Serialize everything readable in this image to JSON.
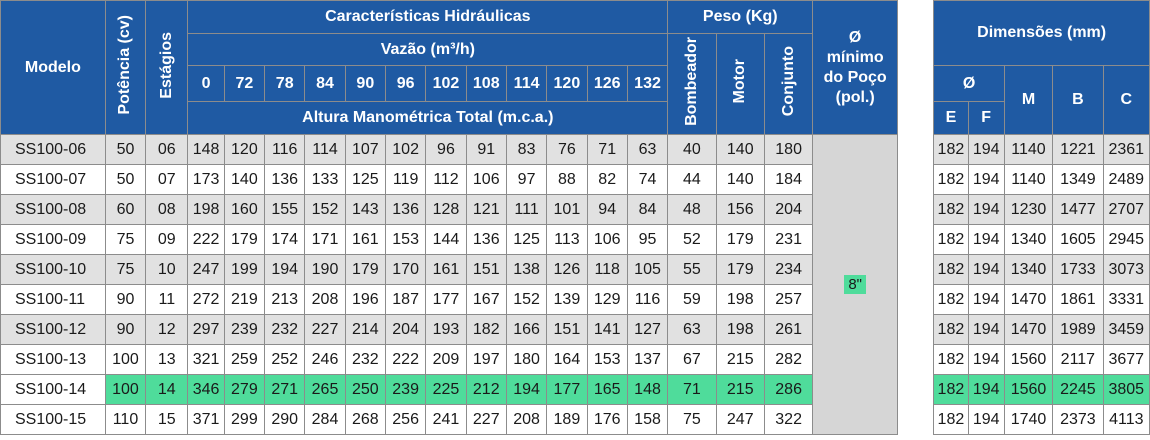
{
  "headers": {
    "model": "Modelo",
    "power": "Potência (cv)",
    "stages": "Estágios",
    "hydraulic": "Características Hidráulicas",
    "flow": "Vazão (m³/h)",
    "flow_values": [
      "0",
      "72",
      "78",
      "84",
      "90",
      "96",
      "102",
      "108",
      "114",
      "120",
      "126",
      "132"
    ],
    "head": "Altura Manométrica Total (m.c.a.)",
    "weight": "Peso (Kg)",
    "weight_cols": [
      "Bombeador",
      "Motor",
      "Conjunto"
    ],
    "well": "Ø mínimo do Poço (pol.)",
    "dims": "Dimensões (mm)",
    "dia": "Ø",
    "dim_cols": [
      "E",
      "F",
      "M",
      "B",
      "C"
    ]
  },
  "well_value": "8\"",
  "highlight_color": "#4fdc9b",
  "header_color": "#1f5aa3",
  "rows": [
    {
      "model": "SS100-06",
      "power": "50",
      "stages": "06",
      "heads": [
        "148",
        "120",
        "116",
        "114",
        "107",
        "102",
        "96",
        "91",
        "83",
        "76",
        "71",
        "63"
      ],
      "weights": [
        "40",
        "140",
        "180"
      ],
      "dims": [
        "182",
        "194",
        "1140",
        "1221",
        "2361"
      ]
    },
    {
      "model": "SS100-07",
      "power": "50",
      "stages": "07",
      "heads": [
        "173",
        "140",
        "136",
        "133",
        "125",
        "119",
        "112",
        "106",
        "97",
        "88",
        "82",
        "74"
      ],
      "weights": [
        "44",
        "140",
        "184"
      ],
      "dims": [
        "182",
        "194",
        "1140",
        "1349",
        "2489"
      ]
    },
    {
      "model": "SS100-08",
      "power": "60",
      "stages": "08",
      "heads": [
        "198",
        "160",
        "155",
        "152",
        "143",
        "136",
        "128",
        "121",
        "111",
        "101",
        "94",
        "84"
      ],
      "weights": [
        "48",
        "156",
        "204"
      ],
      "dims": [
        "182",
        "194",
        "1230",
        "1477",
        "2707"
      ]
    },
    {
      "model": "SS100-09",
      "power": "75",
      "stages": "09",
      "heads": [
        "222",
        "179",
        "174",
        "171",
        "161",
        "153",
        "144",
        "136",
        "125",
        "113",
        "106",
        "95"
      ],
      "weights": [
        "52",
        "179",
        "231"
      ],
      "dims": [
        "182",
        "194",
        "1340",
        "1605",
        "2945"
      ]
    },
    {
      "model": "SS100-10",
      "power": "75",
      "stages": "10",
      "heads": [
        "247",
        "199",
        "194",
        "190",
        "179",
        "170",
        "161",
        "151",
        "138",
        "126",
        "118",
        "105"
      ],
      "weights": [
        "55",
        "179",
        "234"
      ],
      "dims": [
        "182",
        "194",
        "1340",
        "1733",
        "3073"
      ]
    },
    {
      "model": "SS100-11",
      "power": "90",
      "stages": "11",
      "heads": [
        "272",
        "219",
        "213",
        "208",
        "196",
        "187",
        "177",
        "167",
        "152",
        "139",
        "129",
        "116"
      ],
      "weights": [
        "59",
        "198",
        "257"
      ],
      "dims": [
        "182",
        "194",
        "1470",
        "1861",
        "3331"
      ]
    },
    {
      "model": "SS100-12",
      "power": "90",
      "stages": "12",
      "heads": [
        "297",
        "239",
        "232",
        "227",
        "214",
        "204",
        "193",
        "182",
        "166",
        "151",
        "141",
        "127"
      ],
      "weights": [
        "63",
        "198",
        "261"
      ],
      "dims": [
        "182",
        "194",
        "1470",
        "1989",
        "3459"
      ]
    },
    {
      "model": "SS100-13",
      "power": "100",
      "stages": "13",
      "heads": [
        "321",
        "259",
        "252",
        "246",
        "232",
        "222",
        "209",
        "197",
        "180",
        "164",
        "153",
        "137"
      ],
      "weights": [
        "67",
        "215",
        "282"
      ],
      "dims": [
        "182",
        "194",
        "1560",
        "2117",
        "3677"
      ]
    },
    {
      "model": "SS100-14",
      "power": "100",
      "stages": "14",
      "heads": [
        "346",
        "279",
        "271",
        "265",
        "250",
        "239",
        "225",
        "212",
        "194",
        "177",
        "165",
        "148"
      ],
      "weights": [
        "71",
        "215",
        "286"
      ],
      "dims": [
        "182",
        "194",
        "1560",
        "2245",
        "3805"
      ],
      "highlight": true
    },
    {
      "model": "SS100-15",
      "power": "110",
      "stages": "15",
      "heads": [
        "371",
        "299",
        "290",
        "284",
        "268",
        "256",
        "241",
        "227",
        "208",
        "189",
        "176",
        "158"
      ],
      "weights": [
        "75",
        "247",
        "322"
      ],
      "dims": [
        "182",
        "194",
        "1740",
        "2373",
        "4113"
      ]
    }
  ]
}
